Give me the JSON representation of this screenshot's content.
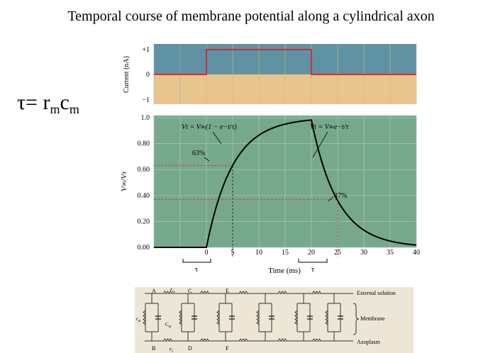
{
  "title": "Temporal course of membrane potential along a cylindrical axon",
  "equation": {
    "lhs": "τ= r",
    "sub1": "m",
    "mid": "c",
    "sub2": "m"
  },
  "current_panel": {
    "ylabel": "Current (nA)",
    "ticks": [
      "+1",
      "0",
      "−1"
    ],
    "colors": {
      "positive_region": "#5f93a3",
      "negative_region": "#e8c58d",
      "trace": "#d92b35"
    }
  },
  "voltage_panel": {
    "ylabel": "V∞/Vτ",
    "xlabel": "Time (ms)",
    "yticks": [
      "1.0",
      "0.80",
      "0.60",
      "0.40",
      "0.20",
      "0.00"
    ],
    "xticks": [
      "0",
      "5",
      "10",
      "15",
      "20",
      "25",
      "30",
      "35",
      "40"
    ],
    "tau_label": "τ",
    "rise_equation": "Vt = V∞(1 − e−t/τ)",
    "decay_equation": "Vt = V∞e−t/τ",
    "annot_63": "63%",
    "annot_37": "37%",
    "colors": {
      "background": "#76a98c",
      "grid": "#a8c9b4",
      "curve": "#000000",
      "guide": "#c8363a"
    }
  },
  "chart_data": [
    {
      "type": "line",
      "name": "current_step",
      "x": [
        -10,
        0,
        0,
        20,
        20,
        40
      ],
      "y": [
        0,
        0,
        1,
        1,
        0,
        0
      ],
      "xlim": [
        -10,
        40
      ],
      "ylim": [
        -1,
        1
      ]
    },
    {
      "type": "line",
      "name": "membrane_potential",
      "tau_ms": 5,
      "x": [
        -10,
        0,
        1,
        2,
        3,
        4,
        5,
        6,
        8,
        10,
        12,
        15,
        17,
        20,
        21,
        22,
        23,
        24,
        25,
        26,
        28,
        30,
        32,
        35,
        38,
        40
      ],
      "y": [
        0,
        0,
        0.18,
        0.33,
        0.45,
        0.55,
        0.63,
        0.7,
        0.8,
        0.86,
        0.91,
        0.95,
        0.97,
        0.99,
        0.81,
        0.66,
        0.54,
        0.45,
        0.37,
        0.3,
        0.2,
        0.14,
        0.09,
        0.05,
        0.02,
        0.01
      ],
      "xlim": [
        -10,
        40
      ],
      "ylim": [
        0,
        1
      ],
      "xlabel": "Time (ms)",
      "annotations": [
        {
          "x": 5,
          "y": 0.63,
          "text": "63%"
        },
        {
          "x": 25,
          "y": 0.37,
          "text": "37%"
        }
      ]
    }
  ],
  "circuit": {
    "node_labels": [
      "A",
      "C",
      "E",
      "B",
      "D",
      "F"
    ],
    "resistor_labels": {
      "top": "r",
      "top_sub": "o",
      "bottom": "r",
      "bottom_sub": "i",
      "membrane_r": "r",
      "membrane_r_sub": "m",
      "membrane_c": "C",
      "membrane_c_sub": "m"
    },
    "external_label": "External solution",
    "membrane_label": "Membrane",
    "axoplasm_label": "Axoplasm",
    "paper_color": "#ede5d6"
  }
}
